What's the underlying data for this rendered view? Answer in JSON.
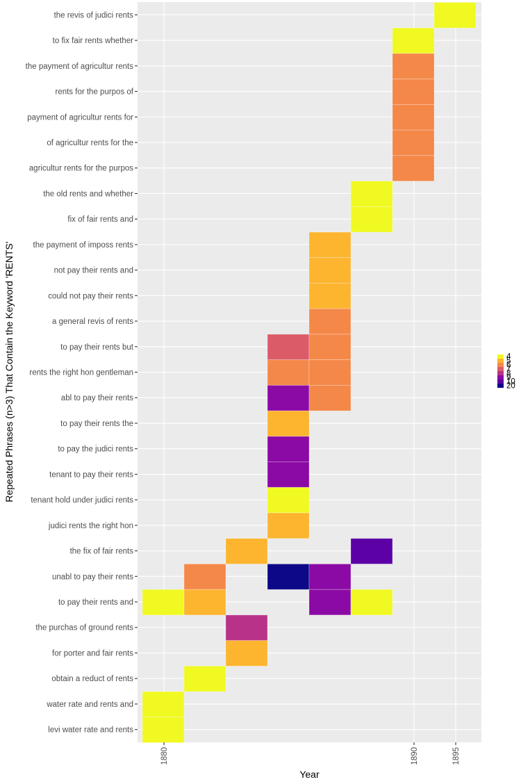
{
  "chart_data": {
    "type": "heatmap",
    "title": "",
    "xlabel": "Year",
    "ylabel": "Repeated Phrases (n>3) That Contain the Keyword 'RENTS'",
    "x_categories": [
      "1880",
      "",
      "",
      "",
      "",
      "",
      "1890",
      "1895"
    ],
    "x_tick_labels_shown": [
      "1880",
      "1890",
      "1895"
    ],
    "y_categories": [
      "the revis of judici rents",
      "to fix fair rents whether",
      "the payment of agricultur rents",
      "rents for the purpos of",
      "payment of agricultur rents for",
      "of agricultur rents for the",
      "agricultur rents for the purpos",
      "the old rents and whether",
      "fix of fair rents and",
      "the payment of imposs rents",
      "not pay their rents and",
      "could not pay their rents",
      "a general revis of rents",
      "to pay their rents but",
      "rents the right hon gentleman",
      "abl to pay their rents",
      "to pay their rents the",
      "to pay the judici rents",
      "tenant to pay their rents",
      "tenant hold under judici rents",
      "judici rents the right hon",
      "the fix of fair rents",
      "unabl to pay their rents",
      "to pay their rents and",
      "the purchas of ground rents",
      "for porter and fair rents",
      "obtain a reduct of rents",
      "water rate and rents and",
      "levi water rate and rents"
    ],
    "cells": [
      {
        "row": 0,
        "col": 7,
        "value": 4
      },
      {
        "row": 1,
        "col": 6,
        "value": 4
      },
      {
        "row": 2,
        "col": 6,
        "value": 6
      },
      {
        "row": 3,
        "col": 6,
        "value": 6
      },
      {
        "row": 4,
        "col": 6,
        "value": 6
      },
      {
        "row": 5,
        "col": 6,
        "value": 6
      },
      {
        "row": 6,
        "col": 6,
        "value": 6
      },
      {
        "row": 7,
        "col": 5,
        "value": 4
      },
      {
        "row": 8,
        "col": 5,
        "value": 4
      },
      {
        "row": 9,
        "col": 4,
        "value": 5
      },
      {
        "row": 10,
        "col": 4,
        "value": 5
      },
      {
        "row": 11,
        "col": 4,
        "value": 5
      },
      {
        "row": 12,
        "col": 4,
        "value": 6
      },
      {
        "row": 13,
        "col": 3,
        "value": 7
      },
      {
        "row": 13,
        "col": 4,
        "value": 6
      },
      {
        "row": 14,
        "col": 3,
        "value": 6
      },
      {
        "row": 14,
        "col": 4,
        "value": 6
      },
      {
        "row": 15,
        "col": 3,
        "value": 9
      },
      {
        "row": 15,
        "col": 4,
        "value": 6
      },
      {
        "row": 16,
        "col": 3,
        "value": 5
      },
      {
        "row": 17,
        "col": 3,
        "value": 9
      },
      {
        "row": 18,
        "col": 3,
        "value": 9
      },
      {
        "row": 19,
        "col": 3,
        "value": 4
      },
      {
        "row": 20,
        "col": 3,
        "value": 5
      },
      {
        "row": 21,
        "col": 2,
        "value": 5
      },
      {
        "row": 21,
        "col": 5,
        "value": 10
      },
      {
        "row": 22,
        "col": 1,
        "value": 6
      },
      {
        "row": 22,
        "col": 3,
        "value": 20
      },
      {
        "row": 22,
        "col": 4,
        "value": 9
      },
      {
        "row": 23,
        "col": 0,
        "value": 4
      },
      {
        "row": 23,
        "col": 1,
        "value": 5
      },
      {
        "row": 23,
        "col": 4,
        "value": 9
      },
      {
        "row": 23,
        "col": 5,
        "value": 4
      },
      {
        "row": 24,
        "col": 2,
        "value": 8
      },
      {
        "row": 25,
        "col": 2,
        "value": 5
      },
      {
        "row": 26,
        "col": 1,
        "value": 4
      },
      {
        "row": 27,
        "col": 0,
        "value": 4
      },
      {
        "row": 28,
        "col": 0,
        "value": 4
      }
    ],
    "legend": {
      "title": "",
      "placement": "right",
      "entries": [
        {
          "label": "4",
          "value": 4,
          "color": "#F0F921"
        },
        {
          "label": "5",
          "value": 5,
          "color": "#FDB42F"
        },
        {
          "label": "6",
          "value": 6,
          "color": "#F48849"
        },
        {
          "label": "7",
          "value": 7,
          "color": "#DB5C68"
        },
        {
          "label": "8",
          "value": 8,
          "color": "#B93289"
        },
        {
          "label": "9",
          "value": 9,
          "color": "#8B0AA5"
        },
        {
          "label": "10",
          "value": 10,
          "color": "#5C01A6"
        },
        {
          "label": "20",
          "value": 20,
          "color": "#0D0887"
        }
      ]
    },
    "grid": true,
    "panel_background": "#EBEBEB",
    "grid_color": "#FFFFFF"
  }
}
